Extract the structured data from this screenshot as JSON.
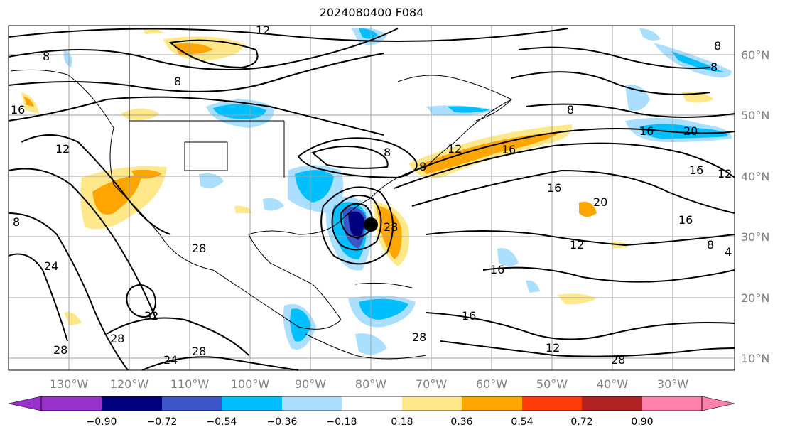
{
  "title": "2024080400 F084",
  "map": {
    "lon_labels": [
      "130°W",
      "120°W",
      "110°W",
      "100°W",
      "90°W",
      "80°W",
      "70°W",
      "60°W",
      "50°W",
      "40°W",
      "30°W"
    ],
    "lat_labels": [
      "60°N",
      "50°N",
      "40°N",
      "30°N",
      "20°N",
      "10°N"
    ],
    "contour_labels": [
      "8",
      "12",
      "8",
      "8",
      "16",
      "12",
      "8",
      "4",
      "8",
      "28",
      "24",
      "32",
      "28",
      "24",
      "28",
      "12",
      "8",
      "16",
      "12",
      "16",
      "16",
      "20",
      "16",
      "12",
      "20",
      "16",
      "12",
      "8",
      "4",
      "12",
      "16",
      "16",
      "12",
      "28"
    ],
    "colors": {
      "neg_strong": "#00007f",
      "neg_mid": "#3a56c8",
      "neg_light": "#00bfff",
      "neg_pale": "#aadfff",
      "pos_pale": "#ffe88a",
      "pos_mid": "#ffa500",
      "pos_strong": "#ff3b0a",
      "pos_dark": "#b22222",
      "pos_pink": "#ff80aa",
      "neg_violet": "#9932cc"
    }
  },
  "colorbar": {
    "ticks": [
      "−0.90",
      "−0.72",
      "−0.54",
      "−0.36",
      "−0.18",
      "0.18",
      "0.36",
      "0.54",
      "0.72",
      "0.90"
    ],
    "colors": [
      "#9932cc",
      "#00007f",
      "#3a56c8",
      "#00bfff",
      "#aadfff",
      "#ffffff",
      "#ffe88a",
      "#ffa500",
      "#ff3b0a",
      "#b22222",
      "#ff80aa"
    ]
  }
}
